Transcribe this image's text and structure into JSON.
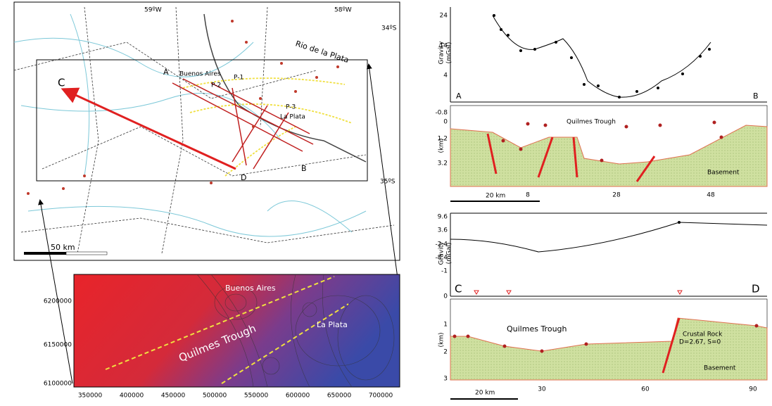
{
  "map": {
    "lon_west": "59ºW",
    "lon_east": "58ºW",
    "lat_north": "34ºS",
    "lat_south": "35ºS",
    "river": "Rio de la Plata",
    "point_a": "A",
    "point_b": "B",
    "point_c": "C",
    "point_d": "D",
    "city_1": "Buenos Aires",
    "city_2": "La Plata",
    "profile_1": "P-1",
    "profile_2": "P-2",
    "profile_3": "P-3",
    "scale": "50 km"
  },
  "contour_map": {
    "city_1": "Buenos Aires",
    "city_2": "La Plata",
    "trough": "Quilmes Trough",
    "yticks": [
      6200000,
      6150000,
      6100000
    ],
    "xticks": [
      350000,
      400000,
      450000,
      500000,
      550000,
      600000,
      650000,
      700000
    ]
  },
  "profile_ab": {
    "gravity_label": "Gravity",
    "gravity_unit": "(mGal)",
    "gravity_ticks": [
      24,
      14,
      4
    ],
    "start": "A",
    "end": "B",
    "depth_label": "(km)",
    "depth_ticks": [
      -0.8,
      0,
      1.2,
      3.2
    ],
    "trough": "Quilmes Trough",
    "basement": "Basement",
    "xticks": [
      8,
      28,
      48
    ],
    "scale": "20 km"
  },
  "profile_cd": {
    "gravity_label": "Gravity",
    "gravity_unit": "(mGal)",
    "gravity_ticks": [
      9.6,
      3.6,
      -2.4,
      -8.4,
      -1,
      0
    ],
    "start": "C",
    "end": "D",
    "depth_label": "(km)",
    "depth_ticks": [
      1,
      2,
      3
    ],
    "trough": "Quilmes Trough",
    "crust": "Crustal Rock",
    "crust_params": "D=2.67, S=0",
    "basement": "Basement",
    "xticks": [
      30,
      60,
      90
    ],
    "scale": "20 km"
  }
}
